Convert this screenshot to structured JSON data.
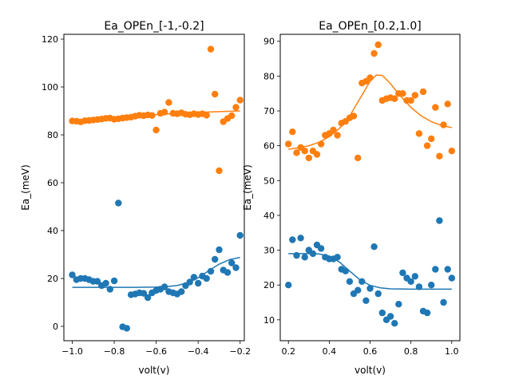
{
  "chart_data": [
    {
      "type": "scatter",
      "title": "Ea_OPEn_[-1,-0.2]",
      "xlabel": "volt(v)",
      "ylabel": "Ea_(meV)",
      "xlim": [
        -1.04,
        -0.18
      ],
      "ylim": [
        -6,
        122
      ],
      "xticks": [
        -1.0,
        -0.8,
        -0.6,
        -0.4,
        -0.2
      ],
      "xtick_labels": [
        "−1.0",
        "−0.8",
        "−0.6",
        "−0.4",
        "−0.2"
      ],
      "yticks": [
        0,
        20,
        40,
        60,
        80,
        100,
        120
      ],
      "grid": false,
      "series": [
        {
          "color": "#ff7f0e",
          "points": [
            [
              -1.0,
              85.8
            ],
            [
              -0.98,
              85.7
            ],
            [
              -0.96,
              85.4
            ],
            [
              -0.94,
              85.9
            ],
            [
              -0.92,
              86.0
            ],
            [
              -0.9,
              86.2
            ],
            [
              -0.88,
              86.4
            ],
            [
              -0.86,
              86.6
            ],
            [
              -0.84,
              86.9
            ],
            [
              -0.82,
              87.0
            ],
            [
              -0.8,
              86.5
            ],
            [
              -0.78,
              86.7
            ],
            [
              -0.76,
              87.0
            ],
            [
              -0.74,
              87.2
            ],
            [
              -0.72,
              87.4
            ],
            [
              -0.7,
              87.8
            ],
            [
              -0.68,
              88.2
            ],
            [
              -0.66,
              88.0
            ],
            [
              -0.64,
              88.3
            ],
            [
              -0.62,
              88.1
            ],
            [
              -0.6,
              82.0
            ],
            [
              -0.58,
              89.0
            ],
            [
              -0.56,
              89.5
            ],
            [
              -0.54,
              93.5
            ],
            [
              -0.52,
              89.0
            ],
            [
              -0.5,
              88.8
            ],
            [
              -0.48,
              89.2
            ],
            [
              -0.46,
              88.6
            ],
            [
              -0.44,
              88.4
            ],
            [
              -0.42,
              88.8
            ],
            [
              -0.4,
              88.5
            ],
            [
              -0.38,
              88.8
            ],
            [
              -0.36,
              88.2
            ],
            [
              -0.34,
              115.8
            ],
            [
              -0.32,
              97.0
            ],
            [
              -0.3,
              65.0
            ],
            [
              -0.28,
              85.5
            ],
            [
              -0.26,
              86.8
            ],
            [
              -0.24,
              88.0
            ],
            [
              -0.22,
              91.5
            ],
            [
              -0.2,
              94.5
            ]
          ],
          "fit": [
            [
              -1.0,
              85.6
            ],
            [
              -0.9,
              86.3
            ],
            [
              -0.8,
              87.0
            ],
            [
              -0.7,
              87.7
            ],
            [
              -0.6,
              88.4
            ],
            [
              -0.5,
              89.0
            ],
            [
              -0.4,
              89.4
            ],
            [
              -0.3,
              89.7
            ],
            [
              -0.2,
              90.0
            ]
          ]
        },
        {
          "color": "#1f77b4",
          "points": [
            [
              -1.0,
              21.5
            ],
            [
              -0.98,
              19.5
            ],
            [
              -0.96,
              20.0
            ],
            [
              -0.94,
              20.0
            ],
            [
              -0.92,
              19.5
            ],
            [
              -0.9,
              18.8
            ],
            [
              -0.88,
              18.8
            ],
            [
              -0.86,
              17.0
            ],
            [
              -0.84,
              18.0
            ],
            [
              -0.82,
              15.5
            ],
            [
              -0.8,
              19.0
            ],
            [
              -0.78,
              51.5
            ],
            [
              -0.76,
              -0.2
            ],
            [
              -0.74,
              -0.8
            ],
            [
              -0.72,
              13.2
            ],
            [
              -0.7,
              13.5
            ],
            [
              -0.68,
              14.0
            ],
            [
              -0.66,
              13.8
            ],
            [
              -0.64,
              12.0
            ],
            [
              -0.62,
              14.0
            ],
            [
              -0.6,
              15.0
            ],
            [
              -0.58,
              15.5
            ],
            [
              -0.56,
              16.5
            ],
            [
              -0.54,
              14.5
            ],
            [
              -0.52,
              14.0
            ],
            [
              -0.5,
              13.5
            ],
            [
              -0.48,
              14.5
            ],
            [
              -0.46,
              17.0
            ],
            [
              -0.44,
              18.5
            ],
            [
              -0.42,
              20.5
            ],
            [
              -0.4,
              18.0
            ],
            [
              -0.38,
              21.0
            ],
            [
              -0.36,
              20.0
            ],
            [
              -0.34,
              23.0
            ],
            [
              -0.32,
              28.0
            ],
            [
              -0.3,
              32.0
            ],
            [
              -0.28,
              23.5
            ],
            [
              -0.26,
              22.5
            ],
            [
              -0.24,
              26.5
            ],
            [
              -0.22,
              24.5
            ],
            [
              -0.2,
              38.0
            ]
          ],
          "fit": [
            [
              -1.0,
              16.3
            ],
            [
              -0.9,
              16.3
            ],
            [
              -0.8,
              16.3
            ],
            [
              -0.7,
              16.3
            ],
            [
              -0.6,
              16.4
            ],
            [
              -0.55,
              16.6
            ],
            [
              -0.5,
              17.1
            ],
            [
              -0.45,
              18.2
            ],
            [
              -0.4,
              20.3
            ],
            [
              -0.35,
              23.2
            ],
            [
              -0.3,
              26.0
            ],
            [
              -0.25,
              27.9
            ],
            [
              -0.2,
              28.8
            ]
          ]
        }
      ]
    },
    {
      "type": "scatter",
      "title": "Ea_OPEn_[0.2,1.0]",
      "xlabel": "volt(v)",
      "ylabel": "Ea_(meV)",
      "xlim": [
        0.16,
        1.04
      ],
      "ylim": [
        4,
        92
      ],
      "xticks": [
        0.2,
        0.4,
        0.6,
        0.8,
        1.0
      ],
      "xtick_labels": [
        "0.2",
        "0.4",
        "0.6",
        "0.8",
        "1.0"
      ],
      "yticks": [
        10,
        20,
        30,
        40,
        50,
        60,
        70,
        80,
        90
      ],
      "grid": false,
      "series": [
        {
          "color": "#ff7f0e",
          "points": [
            [
              0.2,
              60.5
            ],
            [
              0.22,
              64.0
            ],
            [
              0.24,
              58.0
            ],
            [
              0.26,
              59.5
            ],
            [
              0.28,
              58.5
            ],
            [
              0.3,
              56.5
            ],
            [
              0.32,
              58.5
            ],
            [
              0.34,
              57.5
            ],
            [
              0.36,
              60.5
            ],
            [
              0.38,
              63.0
            ],
            [
              0.4,
              63.5
            ],
            [
              0.42,
              64.5
            ],
            [
              0.44,
              63.0
            ],
            [
              0.46,
              66.5
            ],
            [
              0.48,
              67.0
            ],
            [
              0.5,
              68.0
            ],
            [
              0.52,
              68.5
            ],
            [
              0.54,
              56.5
            ],
            [
              0.56,
              78.0
            ],
            [
              0.58,
              78.5
            ],
            [
              0.6,
              79.5
            ],
            [
              0.62,
              86.5
            ],
            [
              0.64,
              89.0
            ],
            [
              0.66,
              73.0
            ],
            [
              0.68,
              73.5
            ],
            [
              0.7,
              73.8
            ],
            [
              0.72,
              73.5
            ],
            [
              0.74,
              75.0
            ],
            [
              0.76,
              75.0
            ],
            [
              0.78,
              73.0
            ],
            [
              0.8,
              73.0
            ],
            [
              0.82,
              74.5
            ],
            [
              0.84,
              63.5
            ],
            [
              0.86,
              75.5
            ],
            [
              0.88,
              60.0
            ],
            [
              0.9,
              62.0
            ],
            [
              0.92,
              71.0
            ],
            [
              0.94,
              57.0
            ],
            [
              0.96,
              66.0
            ],
            [
              0.98,
              72.0
            ],
            [
              1.0,
              58.5
            ]
          ],
          "fit": [
            [
              0.2,
              59.0
            ],
            [
              0.25,
              59.4
            ],
            [
              0.3,
              60.0
            ],
            [
              0.35,
              61.0
            ],
            [
              0.4,
              62.6
            ],
            [
              0.45,
              65.0
            ],
            [
              0.5,
              68.5
            ],
            [
              0.55,
              73.5
            ],
            [
              0.6,
              78.5
            ],
            [
              0.63,
              80.3
            ],
            [
              0.66,
              80.2
            ],
            [
              0.7,
              77.8
            ],
            [
              0.75,
              74.2
            ],
            [
              0.8,
              71.0
            ],
            [
              0.85,
              68.6
            ],
            [
              0.9,
              66.9
            ],
            [
              0.95,
              65.8
            ],
            [
              1.0,
              65.2
            ]
          ]
        },
        {
          "color": "#1f77b4",
          "points": [
            [
              0.2,
              20.0
            ],
            [
              0.22,
              33.0
            ],
            [
              0.24,
              28.5
            ],
            [
              0.26,
              33.5
            ],
            [
              0.28,
              28.0
            ],
            [
              0.3,
              30.0
            ],
            [
              0.32,
              29.0
            ],
            [
              0.34,
              31.5
            ],
            [
              0.36,
              30.5
            ],
            [
              0.38,
              28.0
            ],
            [
              0.4,
              27.5
            ],
            [
              0.42,
              27.5
            ],
            [
              0.44,
              28.0
            ],
            [
              0.46,
              24.5
            ],
            [
              0.48,
              24.0
            ],
            [
              0.5,
              21.0
            ],
            [
              0.52,
              17.5
            ],
            [
              0.54,
              18.5
            ],
            [
              0.56,
              21.0
            ],
            [
              0.58,
              15.5
            ],
            [
              0.6,
              19.0
            ],
            [
              0.62,
              31.0
            ],
            [
              0.64,
              17.5
            ],
            [
              0.66,
              12.0
            ],
            [
              0.68,
              10.0
            ],
            [
              0.7,
              11.0
            ],
            [
              0.72,
              9.0
            ],
            [
              0.74,
              14.5
            ],
            [
              0.76,
              23.5
            ],
            [
              0.78,
              22.0
            ],
            [
              0.8,
              21.0
            ],
            [
              0.82,
              22.5
            ],
            [
              0.84,
              19.5
            ],
            [
              0.86,
              12.5
            ],
            [
              0.88,
              12.0
            ],
            [
              0.9,
              20.0
            ],
            [
              0.92,
              24.5
            ],
            [
              0.94,
              38.5
            ],
            [
              0.96,
              15.0
            ],
            [
              0.98,
              24.5
            ],
            [
              1.0,
              22.0
            ]
          ],
          "fit": [
            [
              0.2,
              29.0
            ],
            [
              0.3,
              29.0
            ],
            [
              0.35,
              28.9
            ],
            [
              0.4,
              28.3
            ],
            [
              0.45,
              26.6
            ],
            [
              0.5,
              24.0
            ],
            [
              0.55,
              21.5
            ],
            [
              0.6,
              19.9
            ],
            [
              0.65,
              19.2
            ],
            [
              0.7,
              18.9
            ],
            [
              0.8,
              18.8
            ],
            [
              0.9,
              18.8
            ],
            [
              1.0,
              18.8
            ]
          ]
        }
      ]
    }
  ]
}
